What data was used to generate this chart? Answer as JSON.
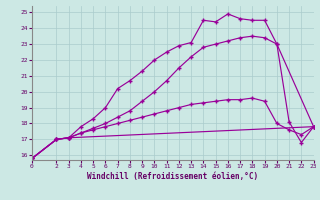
{
  "xlabel": "Windchill (Refroidissement éolien,°C)",
  "ylabel": "",
  "background_color": "#cce8e4",
  "grid_color": "#aacccc",
  "line_color": "#990099",
  "xlim": [
    0,
    23
  ],
  "ylim": [
    15.7,
    25.4
  ],
  "xticks": [
    0,
    2,
    3,
    4,
    5,
    6,
    7,
    8,
    9,
    10,
    11,
    12,
    13,
    14,
    15,
    16,
    17,
    18,
    19,
    20,
    21,
    22,
    23
  ],
  "yticks": [
    16,
    17,
    18,
    19,
    20,
    21,
    22,
    23,
    24,
    25
  ],
  "line1_x": [
    0,
    2,
    3,
    4,
    5,
    6,
    7,
    8,
    9,
    10,
    11,
    12,
    13,
    14,
    15,
    16,
    17,
    18,
    19,
    20,
    21,
    22,
    23
  ],
  "line1_y": [
    15.8,
    17.0,
    17.1,
    17.8,
    18.3,
    19.0,
    20.2,
    20.7,
    21.3,
    22.0,
    22.5,
    22.9,
    23.1,
    24.5,
    24.4,
    24.9,
    24.6,
    24.5,
    24.5,
    23.0,
    18.1,
    16.8,
    17.8
  ],
  "line2_x": [
    0,
    2,
    3,
    4,
    5,
    6,
    7,
    8,
    9,
    10,
    11,
    12,
    13,
    14,
    15,
    16,
    17,
    18,
    19,
    20,
    23
  ],
  "line2_y": [
    15.8,
    17.0,
    17.1,
    17.4,
    17.7,
    18.0,
    18.4,
    18.8,
    19.4,
    20.0,
    20.7,
    21.5,
    22.2,
    22.8,
    23.0,
    23.2,
    23.4,
    23.5,
    23.4,
    23.0,
    17.8
  ],
  "line3_x": [
    0,
    2,
    3,
    4,
    5,
    6,
    7,
    8,
    9,
    10,
    11,
    12,
    13,
    14,
    15,
    16,
    17,
    18,
    19,
    20,
    21,
    22,
    23
  ],
  "line3_y": [
    15.8,
    17.0,
    17.1,
    17.4,
    17.6,
    17.8,
    18.0,
    18.2,
    18.4,
    18.6,
    18.8,
    19.0,
    19.2,
    19.3,
    19.4,
    19.5,
    19.5,
    19.6,
    19.4,
    18.0,
    17.6,
    17.3,
    17.8
  ],
  "line4_x": [
    0,
    2,
    3,
    23
  ],
  "line4_y": [
    15.8,
    17.0,
    17.1,
    17.8
  ]
}
